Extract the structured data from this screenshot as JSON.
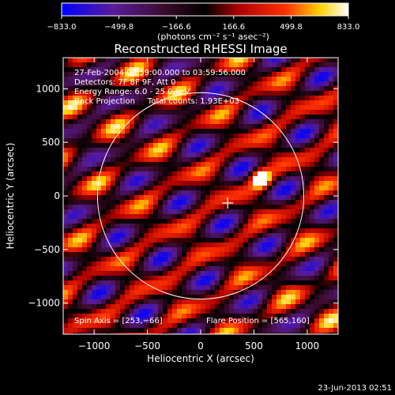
{
  "chart_data": {
    "type": "heatmap",
    "title": "Reconstructed RHESSI Image",
    "xlabel": "Heliocentric X (arcsec)",
    "ylabel": "Heliocentric Y (arcsec)",
    "xlim": [
      -1290,
      1290
    ],
    "ylim": [
      -1290,
      1290
    ],
    "xticks": [
      -1000,
      -500,
      0,
      500,
      1000
    ],
    "yticks": [
      -1000,
      -500,
      0,
      500,
      1000
    ],
    "xtick_labels": [
      "−1000",
      "−500",
      "0",
      "500",
      "1000"
    ],
    "ytick_labels": [
      "−1000",
      "−500",
      "0",
      "500",
      "1000"
    ],
    "colorbar": {
      "range": [
        -833.0,
        833.0
      ],
      "tick_labels": [
        "−833.0",
        "−499.8",
        "−166.6",
        "166.6",
        "499.8",
        "833.0"
      ],
      "units_label": "(photons cm⁻² s⁻¹ asec⁻²)",
      "colors": [
        "#0000ff",
        "#5a1c9a",
        "#3a0a2a",
        "#000000",
        "#b00000",
        "#ff3000",
        "#ffd000",
        "#ffffff"
      ]
    },
    "annotations": [
      "27-Feb-2004 03:59:00.000 to 03:59:56.000",
      "Detectors: 7F 8F 9F, Att 0",
      "Energy Range: 6.0 - 25.0 keV",
      "Back Projection     Total counts: 1.93E+03"
    ],
    "spin_axis_label": "Spin Axis = [253,−66]",
    "spin_axis": [
      253,
      -66
    ],
    "flare_position_label": "Flare Position = [565,160]",
    "flare_position": [
      565,
      160
    ],
    "solar_limb_radius": 968,
    "grid": false,
    "footer_timestamp": "23-Jun-2013 02:51"
  }
}
